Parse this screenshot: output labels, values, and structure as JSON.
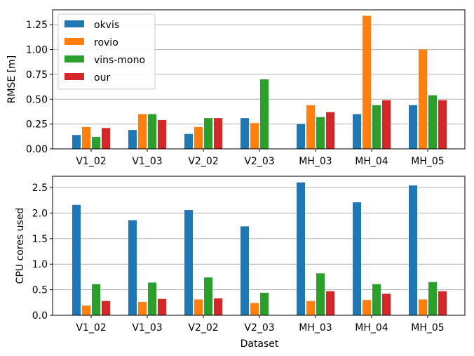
{
  "chart_data": [
    {
      "type": "bar",
      "categories": [
        "V1_02",
        "V1_03",
        "V2_02",
        "V2_03",
        "MH_03",
        "MH_04",
        "MH_05"
      ],
      "series": [
        {
          "name": "okvis",
          "values": [
            0.14,
            0.19,
            0.15,
            0.31,
            0.25,
            0.35,
            0.44
          ]
        },
        {
          "name": "rovio",
          "values": [
            0.22,
            0.35,
            0.22,
            0.26,
            0.44,
            1.34,
            1.0
          ]
        },
        {
          "name": "vins-mono",
          "values": [
            0.12,
            0.35,
            0.31,
            0.7,
            0.32,
            0.44,
            0.54
          ]
        },
        {
          "name": "our",
          "values": [
            0.21,
            0.29,
            0.31,
            null,
            0.37,
            0.49,
            0.49
          ]
        }
      ],
      "xlabel": "",
      "ylabel": "RMSE [m]",
      "ylim": [
        0,
        1.4
      ],
      "yticks": [
        0.0,
        0.25,
        0.5,
        0.75,
        1.0,
        1.25
      ],
      "ytick_labels": [
        "0.00",
        "0.25",
        "0.50",
        "0.75",
        "1.00",
        "1.25"
      ],
      "grid": "y",
      "legend_position": "upper-left",
      "colors": [
        "#1f77b4",
        "#ff7f0e",
        "#2ca02c",
        "#d62728"
      ]
    },
    {
      "type": "bar",
      "categories": [
        "V1_02",
        "V1_03",
        "V2_02",
        "V2_03",
        "MH_03",
        "MH_04",
        "MH_05"
      ],
      "series": [
        {
          "name": "okvis",
          "values": [
            2.16,
            1.86,
            2.06,
            1.74,
            2.6,
            2.21,
            2.54
          ]
        },
        {
          "name": "rovio",
          "values": [
            0.19,
            0.26,
            0.31,
            0.24,
            0.28,
            0.3,
            0.31
          ]
        },
        {
          "name": "vins-mono",
          "values": [
            0.61,
            0.64,
            0.74,
            0.44,
            0.82,
            0.61,
            0.65
          ]
        },
        {
          "name": "our",
          "values": [
            0.28,
            0.32,
            0.33,
            null,
            0.47,
            0.42,
            0.47
          ]
        }
      ],
      "xlabel": "Dataset",
      "ylabel": "CPU cores used",
      "ylim": [
        0,
        2.72
      ],
      "yticks": [
        0.0,
        0.5,
        1.0,
        1.5,
        2.0,
        2.5
      ],
      "ytick_labels": [
        "0.0",
        "0.5",
        "1.0",
        "1.5",
        "2.0",
        "2.5"
      ],
      "grid": "y",
      "colors": [
        "#1f77b4",
        "#ff7f0e",
        "#2ca02c",
        "#d62728"
      ]
    }
  ]
}
